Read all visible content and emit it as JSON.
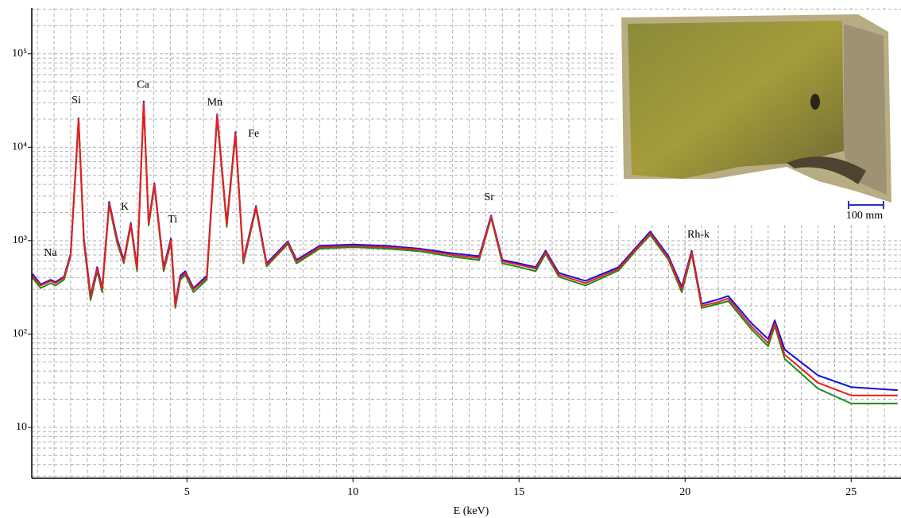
{
  "chart_data": {
    "type": "line",
    "xlabel": "E (keV)",
    "xlim": [
      0.33,
      26.5
    ],
    "ylim": [
      2.85,
      310000
    ],
    "log_y": true,
    "grid": true,
    "minor_grid": true,
    "xticks": [
      5,
      10,
      15,
      20,
      25
    ],
    "yticks": [
      10,
      {
        "value": 100,
        "label": "10²"
      },
      {
        "value": 1000,
        "label": "10³"
      },
      {
        "value": 10000,
        "label": "10⁴"
      },
      {
        "value": 100000,
        "label": "10⁵"
      }
    ],
    "x": [
      0.35,
      0.6,
      0.9,
      1.04,
      1.3,
      1.5,
      1.74,
      1.9,
      2.1,
      2.3,
      2.45,
      2.66,
      2.9,
      3.1,
      3.31,
      3.5,
      3.7,
      3.85,
      4.02,
      4.3,
      4.52,
      4.65,
      4.8,
      4.95,
      5.2,
      5.6,
      5.91,
      6.2,
      6.46,
      6.7,
      7.08,
      7.4,
      8.04,
      8.3,
      9,
      10,
      11,
      12,
      13,
      13.8,
      14.16,
      14.5,
      15,
      15.5,
      15.8,
      16.2,
      17,
      18,
      18.5,
      18.95,
      19.5,
      19.9,
      20.2,
      20.5,
      21,
      21.3,
      22,
      22.5,
      22.7,
      23,
      24,
      25,
      26.4
    ],
    "series": [
      {
        "color": "#1010e0",
        "values": [
          440,
          340,
          380,
          360,
          410,
          720,
          20500,
          1050,
          260,
          520,
          310,
          2600,
          1050,
          620,
          1550,
          520,
          31000,
          1550,
          4100,
          520,
          1050,
          210,
          420,
          470,
          310,
          420,
          22500,
          1550,
          14500,
          620,
          2350,
          570,
          980,
          620,
          880,
          910,
          880,
          820,
          730,
          680,
          1850,
          620,
          570,
          520,
          780,
          450,
          370,
          520,
          830,
          1250,
          680,
          320,
          780,
          210,
          235,
          255,
          130,
          88,
          140,
          68,
          36,
          27,
          25
        ]
      },
      {
        "color": "#1a8a1a",
        "values": [
          400,
          310,
          350,
          330,
          380,
          680,
          19000,
          950,
          230,
          470,
          280,
          2400,
          950,
          570,
          1450,
          470,
          29000,
          1450,
          3800,
          470,
          950,
          190,
          380,
          430,
          280,
          380,
          21000,
          1400,
          13500,
          570,
          2200,
          530,
          920,
          570,
          820,
          850,
          820,
          770,
          670,
          620,
          1750,
          570,
          520,
          470,
          720,
          410,
          330,
          480,
          770,
          1150,
          620,
          280,
          720,
          190,
          210,
          225,
          112,
          74,
          122,
          54,
          26,
          18,
          18
        ]
      },
      {
        "color": "#ee1c1c",
        "values": [
          420,
          330,
          370,
          350,
          400,
          700,
          20000,
          1000,
          250,
          500,
          300,
          2500,
          1000,
          600,
          1500,
          500,
          30000,
          1500,
          4000,
          500,
          1000,
          200,
          400,
          450,
          300,
          400,
          22000,
          1500,
          14000,
          600,
          2300,
          550,
          950,
          600,
          850,
          880,
          850,
          800,
          700,
          650,
          1800,
          600,
          550,
          500,
          750,
          430,
          350,
          500,
          800,
          1200,
          650,
          300,
          750,
          200,
          220,
          240,
          120,
          80,
          130,
          60,
          30,
          22,
          22
        ]
      }
    ],
    "annotations": [
      {
        "text": "Na",
        "x": 0.89,
        "y": 730
      },
      {
        "text": "Si",
        "x": 1.67,
        "y": 31500
      },
      {
        "text": "K",
        "x": 3.13,
        "y": 2270
      },
      {
        "text": "Ca",
        "x": 3.68,
        "y": 46000
      },
      {
        "text": "Ti",
        "x": 4.57,
        "y": 1660
      },
      {
        "text": "Mn",
        "x": 5.84,
        "y": 30000
      },
      {
        "text": "Fe",
        "x": 7.01,
        "y": 13800
      },
      {
        "text": "Sr",
        "x": 14.1,
        "y": 2880
      },
      {
        "text": "Rh-k",
        "x": 20.4,
        "y": 1150
      }
    ],
    "inset_scale_label": "100 mm"
  }
}
